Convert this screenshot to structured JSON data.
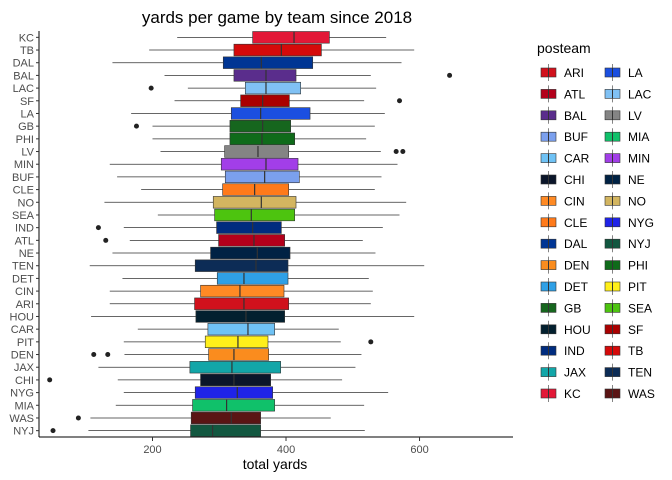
{
  "chart_data": {
    "type": "boxplot",
    "orientation": "horizontal",
    "title": "yards per game by team since 2018",
    "xlabel": "total yards",
    "ylabel": "",
    "xlim": [
      30,
      740
    ],
    "x_ticks": [
      200,
      400,
      600
    ],
    "legend": {
      "title": "posteam",
      "position": "right",
      "columns": 2
    },
    "teams": [
      {
        "team": "KC",
        "color": "#E31837",
        "whisker_low": 237,
        "q1": 350,
        "median": 412,
        "q3": 465,
        "whisker_high": 550,
        "outliers": []
      },
      {
        "team": "TB",
        "color": "#D50A0A",
        "whisker_low": 195,
        "q1": 322,
        "median": 393,
        "q3": 453,
        "whisker_high": 592,
        "outliers": []
      },
      {
        "team": "DAL",
        "color": "#003594",
        "whisker_low": 140,
        "q1": 306,
        "median": 363,
        "q3": 440,
        "whisker_high": 573,
        "outliers": []
      },
      {
        "team": "BAL",
        "color": "#5A2D8C",
        "whisker_low": 218,
        "q1": 322,
        "median": 370,
        "q3": 415,
        "whisker_high": 527,
        "outliers": [
          645
        ]
      },
      {
        "team": "LAC",
        "color": "#80C1F4",
        "whisker_low": 253,
        "q1": 339,
        "median": 370,
        "q3": 422,
        "whisker_high": 535,
        "outliers": [
          198
        ]
      },
      {
        "team": "SF",
        "color": "#AA0000",
        "whisker_low": 233,
        "q1": 332,
        "median": 365,
        "q3": 405,
        "whisker_high": 517,
        "outliers": [
          570
        ]
      },
      {
        "team": "LA",
        "color": "#1B4FE0",
        "whisker_low": 168,
        "q1": 318,
        "median": 362,
        "q3": 436,
        "whisker_high": 548,
        "outliers": []
      },
      {
        "team": "GB",
        "color": "#16661E",
        "whisker_low": 200,
        "q1": 316,
        "median": 365,
        "q3": 407,
        "whisker_high": 533,
        "outliers": [
          176
        ]
      },
      {
        "team": "PHI",
        "color": "#0F6B1A",
        "whisker_low": 200,
        "q1": 316,
        "median": 364,
        "q3": 413,
        "whisker_high": 520,
        "outliers": []
      },
      {
        "team": "LV",
        "color": "#848484",
        "whisker_low": 212,
        "q1": 308,
        "median": 358,
        "q3": 404,
        "whisker_high": 542,
        "outliers": [
          565,
          575
        ]
      },
      {
        "team": "MIN",
        "color": "#A23EE8",
        "whisker_low": 136,
        "q1": 303,
        "median": 370,
        "q3": 418,
        "whisker_high": 567,
        "outliers": []
      },
      {
        "team": "BUF",
        "color": "#7BA0EE",
        "whisker_low": 147,
        "q1": 309,
        "median": 368,
        "q3": 420,
        "whisker_high": 543,
        "outliers": []
      },
      {
        "team": "CLE",
        "color": "#FF7A1A",
        "whisker_low": 183,
        "q1": 305,
        "median": 353,
        "q3": 404,
        "whisker_high": 533,
        "outliers": []
      },
      {
        "team": "NO",
        "color": "#D3B560",
        "whisker_low": 128,
        "q1": 291,
        "median": 363,
        "q3": 415,
        "whisker_high": 580,
        "outliers": []
      },
      {
        "team": "SEA",
        "color": "#4DC40F",
        "whisker_low": 208,
        "q1": 293,
        "median": 348,
        "q3": 413,
        "whisker_high": 570,
        "outliers": []
      },
      {
        "team": "IND",
        "color": "#002C7F",
        "whisker_low": 157,
        "q1": 296,
        "median": 350,
        "q3": 393,
        "whisker_high": 545,
        "outliers": [
          119
        ]
      },
      {
        "team": "ATL",
        "color": "#B3001B",
        "whisker_low": 166,
        "q1": 299,
        "median": 352,
        "q3": 398,
        "whisker_high": 515,
        "outliers": [
          130
        ]
      },
      {
        "team": "NE",
        "color": "#002244",
        "whisker_low": 140,
        "q1": 287,
        "median": 357,
        "q3": 406,
        "whisker_high": 534,
        "outliers": []
      },
      {
        "team": "TEN",
        "color": "#0C2C56",
        "whisker_low": 106,
        "q1": 264,
        "median": 355,
        "q3": 403,
        "whisker_high": 607,
        "outliers": []
      },
      {
        "team": "DET",
        "color": "#2FA0E6",
        "whisker_low": 155,
        "q1": 297,
        "median": 337,
        "q3": 403,
        "whisker_high": 524,
        "outliers": []
      },
      {
        "team": "CIN",
        "color": "#FF8A24",
        "whisker_low": 136,
        "q1": 272,
        "median": 331,
        "q3": 397,
        "whisker_high": 530,
        "outliers": []
      },
      {
        "team": "ARI",
        "color": "#D1111C",
        "whisker_low": 136,
        "q1": 263,
        "median": 337,
        "q3": 404,
        "whisker_high": 527,
        "outliers": []
      },
      {
        "team": "HOU",
        "color": "#03202F",
        "whisker_low": 108,
        "q1": 265,
        "median": 340,
        "q3": 398,
        "whisker_high": 592,
        "outliers": []
      },
      {
        "team": "CAR",
        "color": "#6FC2F5",
        "whisker_low": 178,
        "q1": 283,
        "median": 343,
        "q3": 383,
        "whisker_high": 479,
        "outliers": []
      },
      {
        "team": "PIT",
        "color": "#FFEF1A",
        "whisker_low": 157,
        "q1": 279,
        "median": 328,
        "q3": 373,
        "whisker_high": 482,
        "outliers": [
          527
        ]
      },
      {
        "team": "DEN",
        "color": "#FA8C1E",
        "whisker_low": 158,
        "q1": 284,
        "median": 322,
        "q3": 374,
        "whisker_high": 513,
        "outliers": [
          112,
          133
        ]
      },
      {
        "team": "JAX",
        "color": "#12A6A8",
        "whisker_low": 119,
        "q1": 256,
        "median": 319,
        "q3": 392,
        "whisker_high": 504,
        "outliers": []
      },
      {
        "team": "CHI",
        "color": "#0B162A",
        "whisker_low": 148,
        "q1": 272,
        "median": 322,
        "q3": 377,
        "whisker_high": 484,
        "outliers": [
          46
        ]
      },
      {
        "team": "NYG",
        "color": "#1F23E8",
        "whisker_low": 157,
        "q1": 264,
        "median": 327,
        "q3": 380,
        "whisker_high": 553,
        "outliers": []
      },
      {
        "team": "MIA",
        "color": "#10C16A",
        "whisker_low": 145,
        "q1": 260,
        "median": 311,
        "q3": 383,
        "whisker_high": 517,
        "outliers": []
      },
      {
        "team": "WAS",
        "color": "#5A1414",
        "whisker_low": 107,
        "q1": 258,
        "median": 318,
        "q3": 362,
        "whisker_high": 467,
        "outliers": [
          89
        ]
      },
      {
        "team": "NYJ",
        "color": "#125740",
        "whisker_low": 104,
        "q1": 257,
        "median": 290,
        "q3": 362,
        "whisker_high": 518,
        "outliers": [
          51
        ]
      }
    ],
    "legend_order": [
      "ARI",
      "ATL",
      "BAL",
      "BUF",
      "CAR",
      "CHI",
      "CIN",
      "CLE",
      "DAL",
      "DEN",
      "DET",
      "GB",
      "HOU",
      "IND",
      "JAX",
      "KC",
      "LA",
      "LAC",
      "LV",
      "MIA",
      "MIN",
      "NE",
      "NO",
      "NYG",
      "NYJ",
      "PHI",
      "PIT",
      "SEA",
      "SF",
      "TB",
      "TEN",
      "WAS"
    ]
  }
}
